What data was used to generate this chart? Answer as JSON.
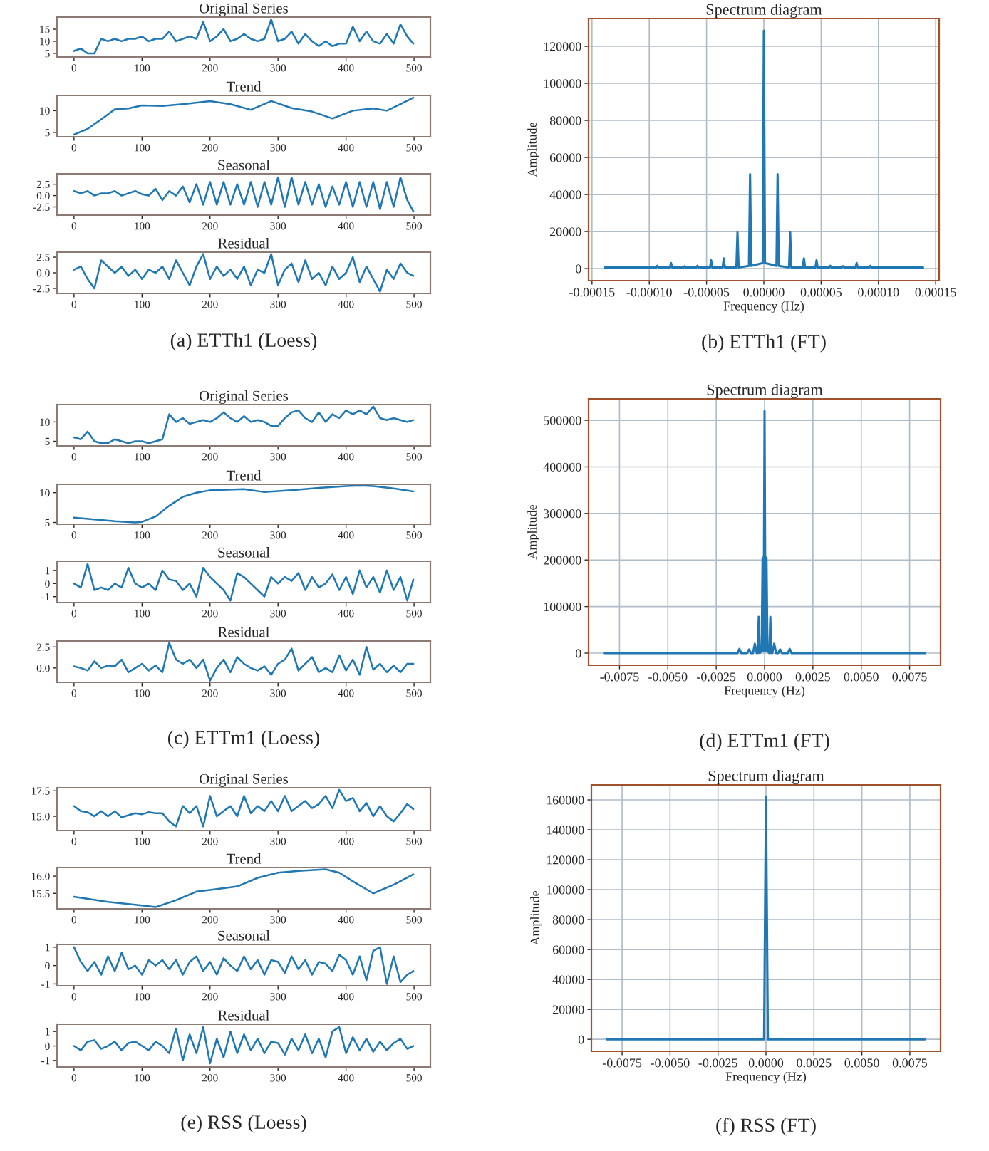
{
  "chart_data": [
    {
      "type": "line",
      "title": "Original Series",
      "x": [
        0,
        10,
        20,
        30,
        40,
        50,
        60,
        70,
        80,
        90,
        100,
        110,
        120,
        130,
        140,
        150,
        160,
        170,
        180,
        190,
        200,
        210,
        220,
        230,
        240,
        250,
        260,
        270,
        280,
        290,
        300,
        310,
        320,
        330,
        340,
        350,
        360,
        370,
        380,
        390,
        400,
        410,
        420,
        430,
        440,
        450,
        460,
        470,
        480,
        490,
        499
      ],
      "xlim": [
        -25,
        524
      ],
      "xticks": [
        0,
        100,
        200,
        300,
        400,
        500
      ],
      "ylim": [
        3.5,
        20
      ],
      "yticks": [
        5,
        10,
        15
      ],
      "series": [
        {
          "color": "#1f77b4",
          "values": [
            6,
            7,
            5,
            5,
            11,
            10,
            11,
            10,
            11,
            11,
            12,
            10,
            11,
            11,
            14,
            10,
            11,
            12,
            11,
            18,
            10,
            12,
            15,
            10,
            11,
            13,
            11,
            10,
            11,
            19,
            10,
            11,
            14,
            9,
            13,
            10,
            8,
            10,
            8,
            9,
            9,
            16,
            10,
            14,
            10,
            9,
            13,
            9,
            17,
            12,
            9
          ]
        }
      ]
    },
    {
      "type": "line",
      "title": "Trend",
      "xlim": [
        -25,
        524
      ],
      "xticks": [
        0,
        100,
        200,
        300,
        400,
        500
      ],
      "ylim": [
        4,
        13.5
      ],
      "yticks": [
        5,
        10
      ],
      "series": [
        {
          "color": "#1f77b4",
          "x": [
            0,
            20,
            40,
            60,
            80,
            100,
            130,
            160,
            200,
            230,
            260,
            290,
            320,
            350,
            380,
            410,
            440,
            460,
            480,
            499
          ],
          "values": [
            4.5,
            5.8,
            8,
            10.3,
            10.5,
            11.2,
            11.1,
            11.5,
            12.2,
            11.5,
            10.2,
            12.2,
            10.6,
            9.8,
            8.2,
            10,
            10.5,
            10,
            11.5,
            13
          ]
        }
      ]
    },
    {
      "type": "line",
      "title": "Seasonal",
      "x": [
        0,
        10,
        20,
        30,
        40,
        50,
        60,
        70,
        80,
        90,
        100,
        110,
        120,
        130,
        140,
        150,
        160,
        170,
        180,
        190,
        200,
        210,
        220,
        230,
        240,
        250,
        260,
        270,
        280,
        290,
        300,
        310,
        320,
        330,
        340,
        350,
        360,
        370,
        380,
        390,
        400,
        410,
        420,
        430,
        440,
        450,
        460,
        470,
        480,
        490,
        499
      ],
      "xlim": [
        -25,
        524
      ],
      "xticks": [
        0,
        100,
        200,
        300,
        400,
        500
      ],
      "ylim": [
        -4.3,
        4.8
      ],
      "yticks": [
        {
          "value": -2.5,
          "label": "-2.5"
        },
        {
          "value": 0,
          "label": "0.0"
        },
        {
          "value": 2.5,
          "label": "2.5"
        }
      ],
      "series": [
        {
          "color": "#1f77b4",
          "values": [
            1,
            0.5,
            1,
            0,
            0.5,
            0.5,
            1,
            0,
            0.5,
            1,
            0.3,
            0,
            1.5,
            -1,
            1,
            0,
            2,
            -1.5,
            2.5,
            -2,
            3,
            -2,
            3,
            -2,
            2.5,
            -2,
            3,
            -2.5,
            3,
            -2,
            4,
            -2.5,
            4,
            -2,
            3,
            -2,
            2.5,
            -2.5,
            2,
            -2,
            3,
            -2.5,
            3,
            -2.5,
            3,
            -3,
            3,
            -2.5,
            4,
            -1,
            -3.5
          ]
        }
      ]
    },
    {
      "type": "line",
      "title": "Residual",
      "x": [
        0,
        10,
        20,
        30,
        40,
        50,
        60,
        70,
        80,
        90,
        100,
        110,
        120,
        130,
        140,
        150,
        160,
        170,
        180,
        190,
        200,
        210,
        220,
        230,
        240,
        250,
        260,
        270,
        280,
        290,
        300,
        310,
        320,
        330,
        340,
        350,
        360,
        370,
        380,
        390,
        400,
        410,
        420,
        430,
        440,
        450,
        460,
        470,
        480,
        490,
        499
      ],
      "xlim": [
        -25,
        524
      ],
      "xticks": [
        0,
        100,
        200,
        300,
        400,
        500
      ],
      "ylim": [
        -3.3,
        3.3
      ],
      "yticks": [
        {
          "value": -2.5,
          "label": "-2.5"
        },
        {
          "value": 0,
          "label": "0.0"
        },
        {
          "value": 2.5,
          "label": "2.5"
        }
      ],
      "annotations": [
        "(a) ETTh1 (Loess)"
      ],
      "series": [
        {
          "color": "#1f77b4",
          "values": [
            0.5,
            1,
            -1,
            -2.5,
            2,
            1,
            0,
            1,
            -0.5,
            0.5,
            -1,
            0.5,
            0,
            1,
            -1,
            2,
            0,
            -2,
            1,
            3,
            -1,
            1,
            -0.5,
            0.5,
            -1,
            1,
            -2,
            0.5,
            0,
            3,
            -2,
            0.5,
            1.5,
            -1.5,
            2,
            -1,
            0,
            -2,
            1,
            -1,
            0,
            2.5,
            -1.5,
            1,
            -1,
            -3,
            0.5,
            -1,
            1.5,
            0,
            -0.5
          ]
        }
      ]
    },
    {
      "type": "line",
      "title": "Spectrum diagram",
      "xlabel": "Frequency (Hz)",
      "ylabel": "Amplitude",
      "grid": true,
      "xlim": [
        -0.000153,
        0.000153
      ],
      "xticks": [
        {
          "value": -0.00015,
          "label": "-0.00015"
        },
        {
          "value": -0.0001,
          "label": "-0.00010"
        },
        {
          "value": -5e-05,
          "label": "-0.00005"
        },
        {
          "value": 0,
          "label": "0.00000"
        },
        {
          "value": 5e-05,
          "label": "0.00005"
        },
        {
          "value": 0.0001,
          "label": "0.00010"
        },
        {
          "value": 0.00015,
          "label": "0.00015"
        }
      ],
      "ylim": [
        -6500,
        135000
      ],
      "yticks": [
        0,
        20000,
        40000,
        60000,
        80000,
        100000,
        120000
      ],
      "annotations": [
        "(b) ETTh1 (FT)"
      ],
      "series": [
        {
          "color": "#1f77b4",
          "x": [
            -0.000139,
            -9.4e-05,
            -9.3e-05,
            -9.2e-05,
            -8.2e-05,
            -8.1e-05,
            -8e-05,
            -7e-05,
            -6.9e-05,
            -6.8e-05,
            -5.9e-05,
            -5.8e-05,
            -5.7e-05,
            -4.7e-05,
            -4.6e-05,
            -4.5e-05,
            -3.6e-05,
            -3.5e-05,
            -3.4e-05,
            -2.4e-05,
            -2.3e-05,
            -2.2e-05,
            -1.3e-05,
            -1.2e-05,
            -1.1e-05,
            -1e-06,
            0,
            1e-06,
            1.1e-05,
            1.2e-05,
            1.3e-05,
            2.2e-05,
            2.3e-05,
            2.4e-05,
            3.4e-05,
            3.5e-05,
            3.6e-05,
            4.5e-05,
            4.6e-05,
            4.7e-05,
            5.7e-05,
            5.8e-05,
            5.9e-05,
            6.8e-05,
            6.9e-05,
            7e-05,
            8e-05,
            8.1e-05,
            8.2e-05,
            9.2e-05,
            9.3e-05,
            9.4e-05,
            0.000139
          ],
          "values": [
            600,
            600,
            1500,
            600,
            600,
            3000,
            600,
            600,
            1300,
            600,
            600,
            1500,
            600,
            600,
            4500,
            600,
            600,
            5500,
            600,
            600,
            19500,
            600,
            1500,
            51000,
            1500,
            3000,
            128500,
            3000,
            1500,
            51000,
            1500,
            600,
            19500,
            600,
            600,
            5500,
            600,
            600,
            4500,
            600,
            600,
            1500,
            600,
            600,
            1300,
            600,
            600,
            3000,
            600,
            600,
            1500,
            600,
            600
          ]
        }
      ]
    },
    {
      "type": "line",
      "title": "Original Series",
      "x": [
        0,
        10,
        20,
        30,
        40,
        50,
        60,
        70,
        80,
        90,
        100,
        110,
        120,
        130,
        140,
        150,
        160,
        170,
        180,
        190,
        200,
        210,
        220,
        230,
        240,
        250,
        260,
        270,
        280,
        290,
        300,
        310,
        320,
        330,
        340,
        350,
        360,
        370,
        380,
        390,
        400,
        410,
        420,
        430,
        440,
        450,
        460,
        470,
        480,
        490,
        499
      ],
      "xlim": [
        -25,
        524
      ],
      "xticks": [
        0,
        100,
        200,
        300,
        400,
        500
      ],
      "ylim": [
        3.8,
        14.5
      ],
      "yticks": [
        5,
        10
      ],
      "series": [
        {
          "color": "#1f77b4",
          "values": [
            6,
            5.5,
            7.5,
            5,
            4.5,
            4.5,
            5.5,
            5,
            4.5,
            5,
            5,
            4.5,
            5,
            5.5,
            12,
            10,
            11,
            9.5,
            10,
            10.5,
            10,
            11,
            12.5,
            11,
            10,
            11.5,
            10,
            10.5,
            10,
            9,
            9,
            11,
            12.5,
            13,
            11,
            10,
            12.5,
            10,
            12,
            11,
            13,
            12,
            13,
            12,
            14,
            11,
            10.5,
            11,
            10.5,
            10,
            10.5
          ]
        }
      ]
    },
    {
      "type": "line",
      "title": "Trend",
      "xlim": [
        -25,
        524
      ],
      "xticks": [
        0,
        100,
        200,
        300,
        400,
        500
      ],
      "ylim": [
        4.7,
        11.4
      ],
      "yticks": [
        5,
        10
      ],
      "series": [
        {
          "color": "#1f77b4",
          "x": [
            0,
            30,
            60,
            90,
            100,
            120,
            140,
            160,
            180,
            200,
            250,
            280,
            320,
            360,
            400,
            420,
            440,
            470,
            499
          ],
          "values": [
            5.8,
            5.5,
            5.2,
            5,
            5.1,
            6,
            7.8,
            9.3,
            10,
            10.4,
            10.6,
            10.1,
            10.4,
            10.8,
            11.1,
            11.2,
            11.1,
            10.7,
            10.2
          ]
        }
      ]
    },
    {
      "type": "line",
      "title": "Seasonal",
      "x": [
        0,
        10,
        20,
        30,
        40,
        50,
        60,
        70,
        80,
        90,
        100,
        110,
        120,
        130,
        140,
        150,
        160,
        170,
        180,
        190,
        200,
        210,
        220,
        230,
        240,
        250,
        260,
        270,
        280,
        290,
        300,
        310,
        320,
        330,
        340,
        350,
        360,
        370,
        380,
        390,
        400,
        410,
        420,
        430,
        440,
        450,
        460,
        470,
        480,
        490,
        499
      ],
      "xlim": [
        -25,
        524
      ],
      "xticks": [
        0,
        100,
        200,
        300,
        400,
        500
      ],
      "ylim": [
        -1.45,
        1.7
      ],
      "yticks": [
        -1,
        0,
        1
      ],
      "series": [
        {
          "color": "#1f77b4",
          "values": [
            0,
            -0.3,
            1.5,
            -0.5,
            -0.3,
            -0.5,
            0,
            -0.3,
            1.2,
            0,
            -0.3,
            0,
            -0.5,
            1,
            0.3,
            0.2,
            -0.5,
            0,
            -1,
            1.2,
            0.5,
            0,
            -0.5,
            -1.3,
            0.8,
            0.5,
            0,
            -0.5,
            -1,
            0.5,
            0,
            0.5,
            0.2,
            0.8,
            -0.5,
            0.5,
            -0.3,
            0,
            0.7,
            -0.5,
            0.5,
            -0.8,
            1,
            -0.3,
            0.5,
            -0.7,
            1,
            -0.5,
            0.5,
            -1.3,
            0.3
          ]
        }
      ]
    },
    {
      "type": "line",
      "title": "Residual",
      "x": [
        0,
        10,
        20,
        30,
        40,
        50,
        60,
        70,
        80,
        90,
        100,
        110,
        120,
        130,
        140,
        150,
        160,
        170,
        180,
        190,
        200,
        210,
        220,
        230,
        240,
        250,
        260,
        270,
        280,
        290,
        300,
        310,
        320,
        330,
        340,
        350,
        360,
        370,
        380,
        390,
        400,
        410,
        420,
        430,
        440,
        450,
        460,
        470,
        480,
        490,
        499
      ],
      "xlim": [
        -25,
        524
      ],
      "xticks": [
        0,
        100,
        200,
        300,
        400,
        500
      ],
      "ylim": [
        -1.7,
        3.2
      ],
      "yticks": [
        {
          "value": 0,
          "label": "0.0"
        },
        {
          "value": 2.5,
          "label": "2.5"
        }
      ],
      "annotations": [
        "(c) ETTm1 (Loess)"
      ],
      "series": [
        {
          "color": "#1f77b4",
          "values": [
            0.2,
            0,
            -0.3,
            0.8,
            0,
            0.3,
            0.2,
            1,
            -0.5,
            0,
            0.5,
            -0.3,
            0.3,
            -0.5,
            3,
            1,
            0.5,
            1,
            0,
            1,
            -1.5,
            0,
            1,
            -0.5,
            1.3,
            0.5,
            0,
            -0.3,
            0.2,
            -0.8,
            0.5,
            1,
            2.3,
            -0.3,
            0.5,
            1.3,
            -0.5,
            0,
            -0.5,
            1.5,
            -0.3,
            1,
            -0.8,
            2.5,
            -0.2,
            0.5,
            -0.5,
            0.3,
            -0.5,
            0.5,
            0.5
          ]
        }
      ]
    },
    {
      "type": "line",
      "title": "Spectrum diagram",
      "xlabel": "Frequency (Hz)",
      "ylabel": "Amplitude",
      "grid": true,
      "xlim": [
        -0.0091,
        0.0091
      ],
      "xticks": [
        {
          "value": -0.0075,
          "label": "-0.0075"
        },
        {
          "value": -0.005,
          "label": "-0.0050"
        },
        {
          "value": -0.0025,
          "label": "-0.0025"
        },
        {
          "value": 0,
          "label": "0.0000"
        },
        {
          "value": 0.0025,
          "label": "0.0025"
        },
        {
          "value": 0.005,
          "label": "0.0050"
        },
        {
          "value": 0.0075,
          "label": "0.0075"
        }
      ],
      "ylim": [
        -26000,
        546000
      ],
      "yticks": [
        0,
        100000,
        200000,
        300000,
        400000,
        500000
      ],
      "annotations": [
        "(d) ETTm1 (FT)"
      ],
      "series": [
        {
          "color": "#1f77b4",
          "x": [
            -0.0083,
            -0.0014,
            -0.0013,
            -0.0012,
            -0.0009,
            -0.0008,
            -0.0007,
            -0.0006,
            -0.0005,
            -0.0004,
            -0.00035,
            -0.0003,
            -0.00025,
            -0.00015,
            -0.0001,
            -5e-05,
            0,
            5e-05,
            0.0001,
            0.00015,
            0.00025,
            0.0003,
            0.00035,
            0.0004,
            0.0005,
            0.0006,
            0.0007,
            0.0008,
            0.0009,
            0.0012,
            0.0013,
            0.0014,
            0.0083
          ],
          "values": [
            0,
            0,
            9000,
            0,
            0,
            8000,
            0,
            0,
            20000,
            0,
            0,
            78000,
            0,
            5000,
            205000,
            5000,
            520000,
            5000,
            205000,
            5000,
            0,
            78000,
            0,
            0,
            20000,
            0,
            0,
            8000,
            0,
            0,
            9000,
            0,
            0
          ]
        }
      ]
    },
    {
      "type": "line",
      "title": "Original Series",
      "x": [
        0,
        10,
        20,
        30,
        40,
        50,
        60,
        70,
        80,
        90,
        100,
        110,
        120,
        130,
        140,
        150,
        160,
        170,
        180,
        190,
        200,
        210,
        220,
        230,
        240,
        250,
        260,
        270,
        280,
        290,
        300,
        310,
        320,
        330,
        340,
        350,
        360,
        370,
        380,
        390,
        400,
        410,
        420,
        430,
        440,
        450,
        460,
        470,
        480,
        490,
        499
      ],
      "xlim": [
        -25,
        524
      ],
      "xticks": [
        0,
        100,
        200,
        300,
        400,
        500
      ],
      "ylim": [
        13.6,
        17.8
      ],
      "yticks": [
        {
          "value": 15,
          "label": "15.0"
        },
        {
          "value": 17.5,
          "label": "17.5"
        }
      ],
      "series": [
        {
          "color": "#1f77b4",
          "values": [
            16,
            15.5,
            15.4,
            15,
            15.5,
            15,
            15.5,
            14.9,
            15.1,
            15.3,
            15.2,
            15.4,
            15.3,
            15.3,
            14.5,
            14,
            16,
            15.3,
            16,
            14,
            17,
            15,
            15.5,
            16,
            15,
            17,
            15.3,
            16,
            15.5,
            16.5,
            15.5,
            17,
            15.5,
            16,
            16.5,
            15.8,
            16.2,
            17,
            15.8,
            17.6,
            16.5,
            16.8,
            15.5,
            16.3,
            15,
            16,
            15,
            14.5,
            15.3,
            16.2,
            15.7
          ]
        }
      ]
    },
    {
      "type": "line",
      "title": "Trend",
      "xlim": [
        -25,
        524
      ],
      "xticks": [
        0,
        100,
        200,
        300,
        400,
        500
      ],
      "ylim": [
        15.05,
        16.25
      ],
      "yticks": [
        {
          "value": 15.5,
          "label": "15.5"
        },
        {
          "value": 16,
          "label": "16.0"
        }
      ],
      "series": [
        {
          "color": "#1f77b4",
          "x": [
            0,
            50,
            100,
            120,
            150,
            180,
            200,
            240,
            270,
            300,
            330,
            370,
            390,
            410,
            440,
            470,
            499
          ],
          "values": [
            15.4,
            15.25,
            15.15,
            15.1,
            15.3,
            15.55,
            15.6,
            15.7,
            15.95,
            16.1,
            16.15,
            16.2,
            16.1,
            15.85,
            15.5,
            15.75,
            16.05
          ]
        }
      ]
    },
    {
      "type": "line",
      "title": "Seasonal",
      "x": [
        0,
        10,
        20,
        30,
        40,
        50,
        60,
        70,
        80,
        90,
        100,
        110,
        120,
        130,
        140,
        150,
        160,
        170,
        180,
        190,
        200,
        210,
        220,
        230,
        240,
        250,
        260,
        270,
        280,
        290,
        300,
        310,
        320,
        330,
        340,
        350,
        360,
        370,
        380,
        390,
        400,
        410,
        420,
        430,
        440,
        450,
        460,
        470,
        480,
        490,
        499
      ],
      "xlim": [
        -25,
        524
      ],
      "xticks": [
        0,
        100,
        200,
        300,
        400,
        500
      ],
      "ylim": [
        -1.1,
        1.15
      ],
      "yticks": [
        -1,
        0,
        1
      ],
      "series": [
        {
          "color": "#1f77b4",
          "values": [
            1,
            0.2,
            -0.3,
            0.2,
            -0.5,
            0.5,
            -0.3,
            0.7,
            -0.2,
            0,
            -0.5,
            0.3,
            0,
            0.3,
            -0.2,
            0.3,
            -0.5,
            0.2,
            0.5,
            -0.3,
            0.2,
            -0.5,
            0.4,
            0,
            -0.3,
            0.5,
            -0.2,
            0.3,
            -0.5,
            0.3,
            0.2,
            -0.4,
            0.5,
            -0.2,
            0.3,
            -0.5,
            0.2,
            0.1,
            -0.3,
            0.6,
            0.3,
            -0.5,
            0.5,
            -0.8,
            0.8,
            1,
            -1,
            0.5,
            -0.9,
            -0.5,
            -0.3
          ]
        }
      ]
    },
    {
      "type": "line",
      "title": "Residual",
      "x": [
        0,
        10,
        20,
        30,
        40,
        50,
        60,
        70,
        80,
        90,
        100,
        110,
        120,
        130,
        140,
        150,
        160,
        170,
        180,
        190,
        200,
        210,
        220,
        230,
        240,
        250,
        260,
        270,
        280,
        290,
        300,
        310,
        320,
        330,
        340,
        350,
        360,
        370,
        380,
        390,
        400,
        410,
        420,
        430,
        440,
        450,
        460,
        470,
        480,
        490,
        499
      ],
      "xlim": [
        -25,
        524
      ],
      "xticks": [
        0,
        100,
        200,
        300,
        400,
        500
      ],
      "ylim": [
        -1.45,
        1.5
      ],
      "yticks": [
        -1,
        0,
        1
      ],
      "annotations": [
        "(e) RSS (Loess)"
      ],
      "series": [
        {
          "color": "#1f77b4",
          "values": [
            0,
            -0.3,
            0.3,
            0.4,
            -0.2,
            0,
            0.3,
            -0.3,
            0.2,
            0.3,
            0,
            -0.3,
            0.3,
            0,
            -0.5,
            1.2,
            -1,
            0.8,
            -0.5,
            1.3,
            -1.2,
            0.5,
            -0.8,
            1,
            -0.5,
            0.8,
            -0.3,
            0.5,
            -0.5,
            0.3,
            0.2,
            -0.6,
            0.5,
            -0.3,
            0.8,
            -0.5,
            0.5,
            -0.8,
            1,
            1.3,
            -0.5,
            0.6,
            -0.3,
            0.5,
            -0.4,
            0.3,
            -0.3,
            0.2,
            0.5,
            -0.2,
            0
          ]
        }
      ]
    },
    {
      "type": "line",
      "title": "Spectrum diagram",
      "xlabel": "Frequency (Hz)",
      "ylabel": "Amplitude",
      "grid": true,
      "xlim": [
        -0.0091,
        0.0091
      ],
      "xticks": [
        {
          "value": -0.0075,
          "label": "-0.0075"
        },
        {
          "value": -0.005,
          "label": "-0.0050"
        },
        {
          "value": -0.0025,
          "label": "-0.0025"
        },
        {
          "value": 0,
          "label": "0.0000"
        },
        {
          "value": 0.0025,
          "label": "0.0025"
        },
        {
          "value": 0.005,
          "label": "0.0050"
        },
        {
          "value": 0.0075,
          "label": "0.0075"
        }
      ],
      "ylim": [
        -8000,
        170000
      ],
      "yticks": [
        0,
        20000,
        40000,
        60000,
        80000,
        100000,
        120000,
        140000,
        160000
      ],
      "annotations": [
        "(f) RSS (FT)"
      ],
      "series": [
        {
          "color": "#1f77b4",
          "x": [
            -0.0083,
            -0.0001,
            0,
            0.0001,
            0.0083
          ],
          "values": [
            0,
            0,
            162000,
            0,
            0
          ]
        }
      ]
    }
  ]
}
